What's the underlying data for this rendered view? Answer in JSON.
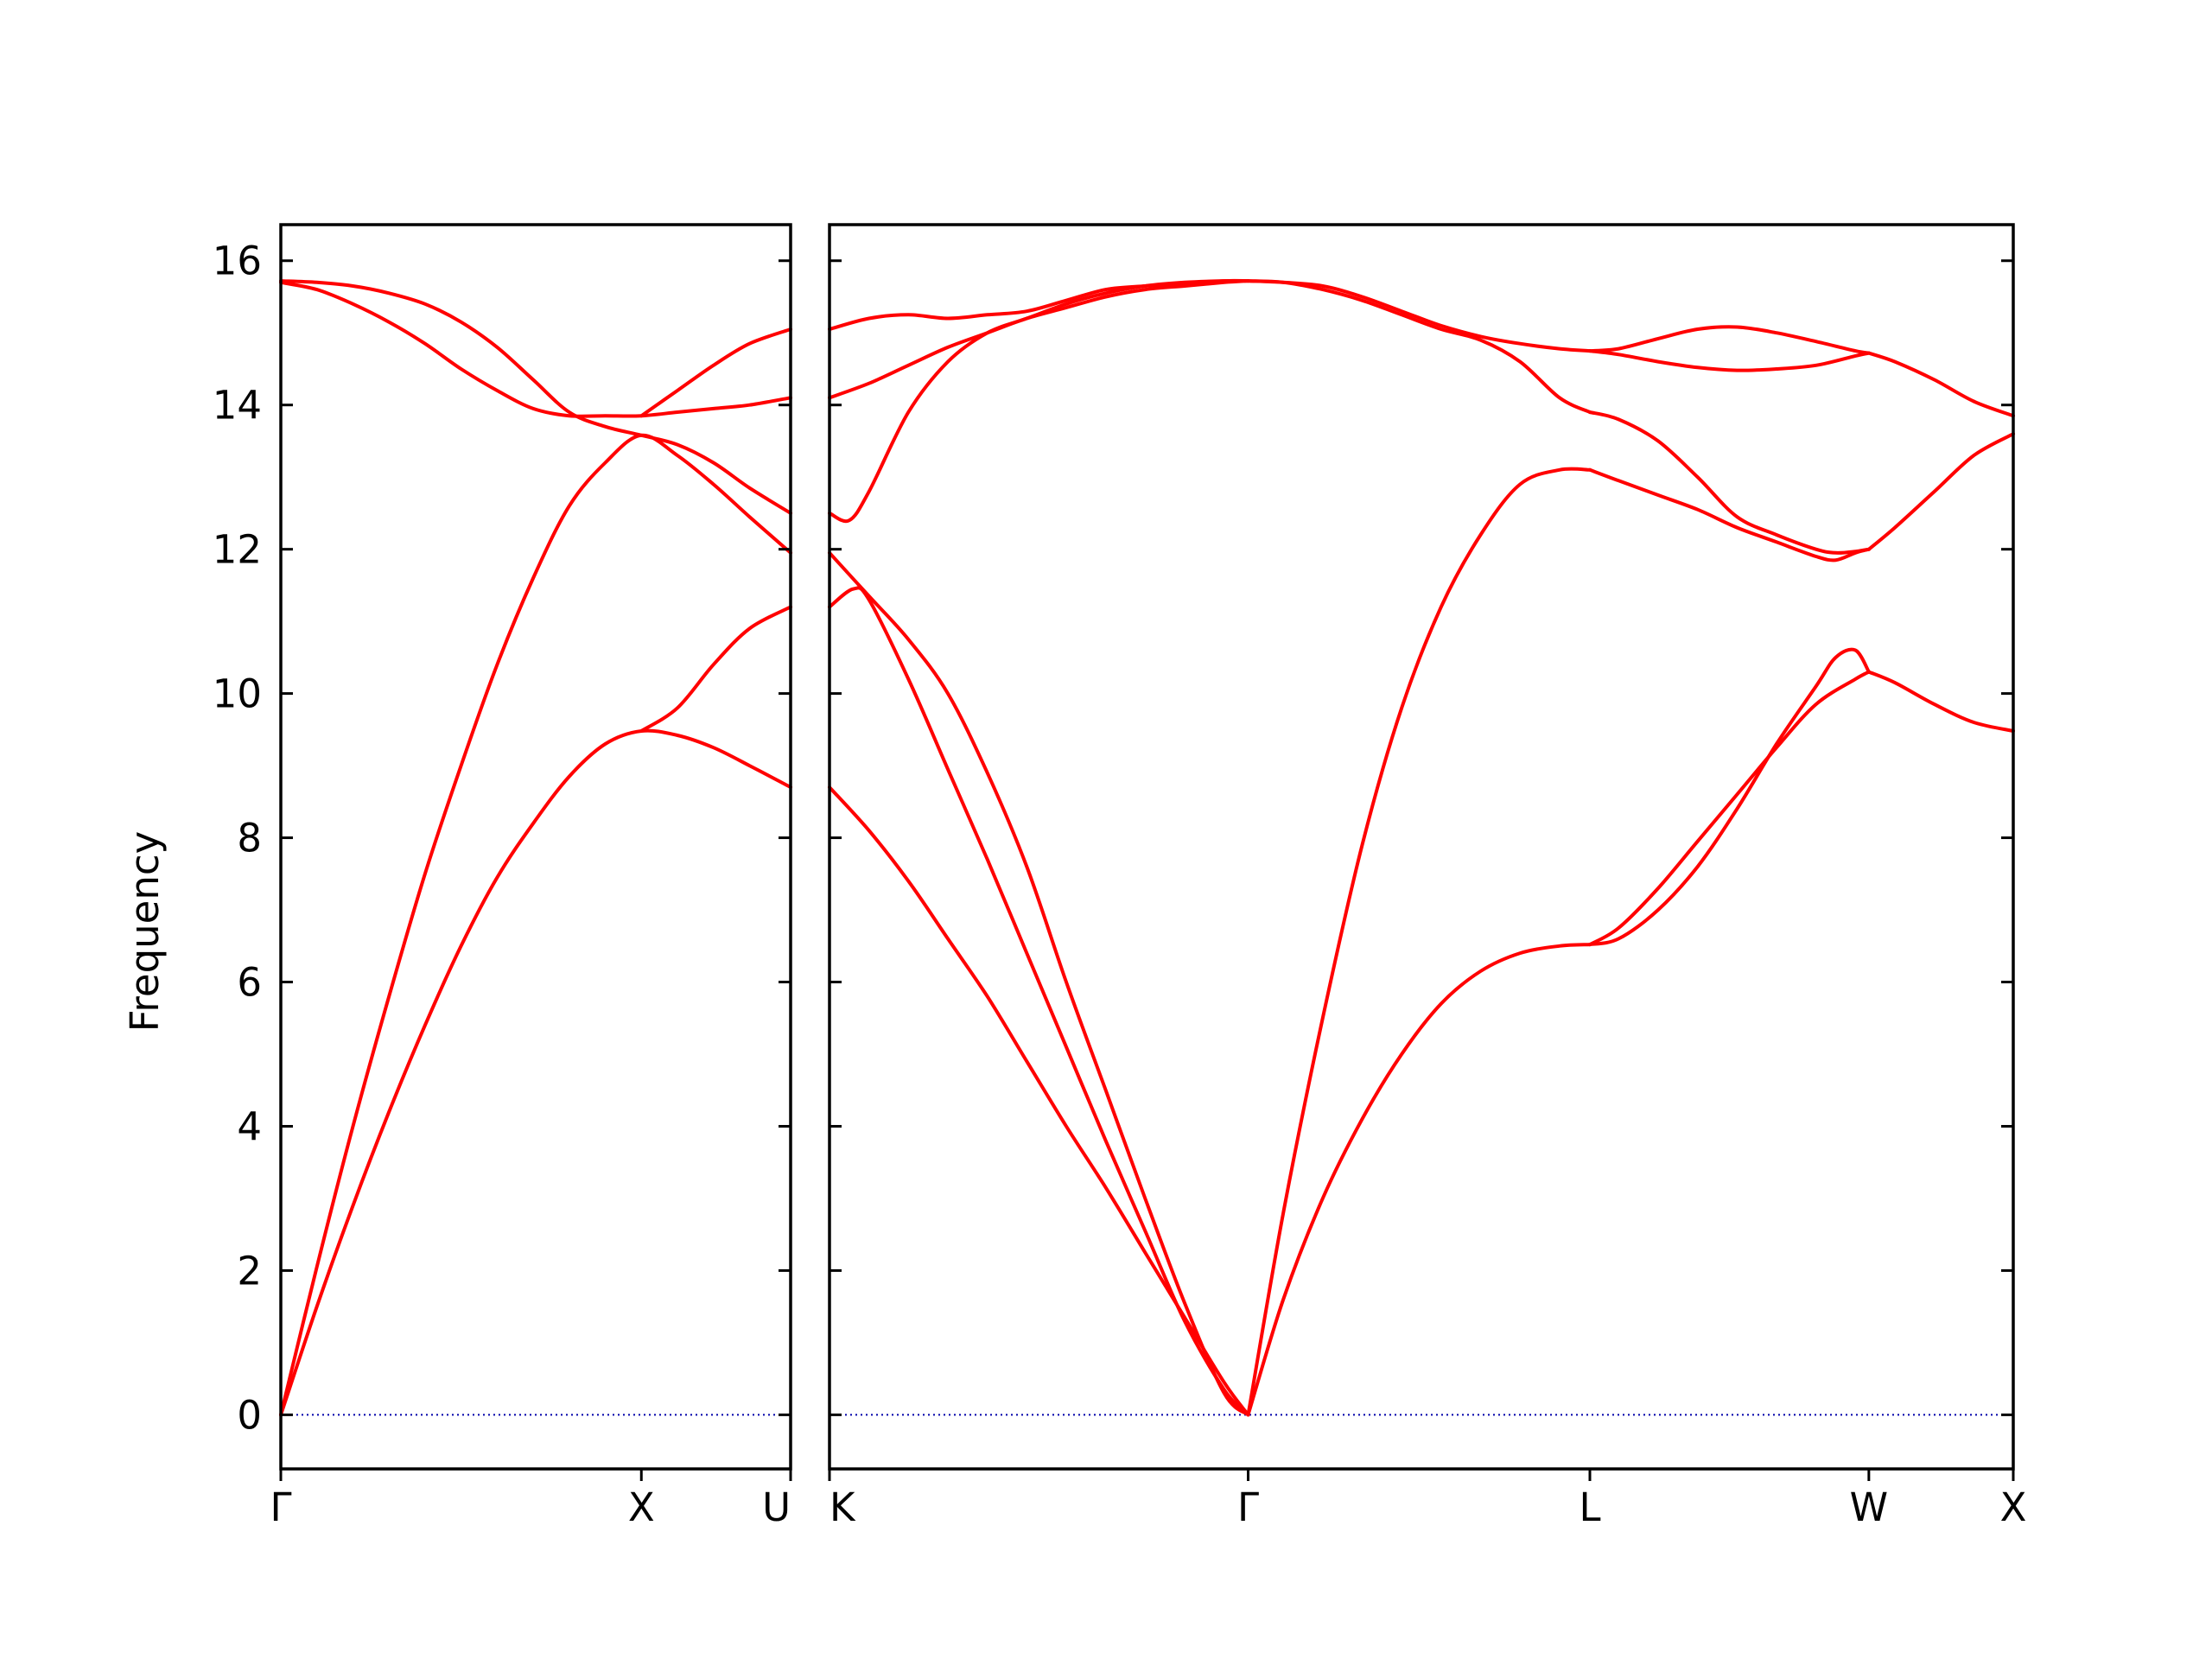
{
  "chart_data": {
    "type": "line",
    "title": "",
    "ylabel": "Frequency",
    "ylim": [
      -0.75,
      16.5
    ],
    "yticks": [
      0,
      2,
      4,
      6,
      8,
      10,
      12,
      14,
      16
    ],
    "grid": false,
    "colors": {
      "band": "#ff0000",
      "zero_line": "#0000aa"
    },
    "panels": [
      {
        "xlim": [
          0,
          1.414
        ],
        "points": [
          {
            "label": "Γ",
            "x": 0
          },
          {
            "label": "X",
            "x": 1.0
          },
          {
            "label": "U",
            "x": 1.414
          }
        ],
        "series": [
          {
            "x": [
              0,
              0.1,
              0.2,
              0.3,
              0.4,
              0.5,
              0.6,
              0.7,
              0.8,
              0.9,
              1.0,
              1.1,
              1.2,
              1.3,
              1.414
            ],
            "y": [
              0,
              1.5,
              2.9,
              4.2,
              5.4,
              6.5,
              7.45,
              8.2,
              8.85,
              9.3,
              9.48,
              9.42,
              9.25,
              9.0,
              8.7
            ]
          },
          {
            "x": [
              0,
              0.1,
              0.2,
              0.3,
              0.4,
              0.5,
              0.6,
              0.7,
              0.8,
              0.9,
              1.0,
              1.1,
              1.2,
              1.3,
              1.414
            ],
            "y": [
              0,
              2.05,
              4.0,
              5.8,
              7.5,
              9.0,
              10.4,
              11.6,
              12.6,
              13.2,
              13.58,
              13.3,
              12.9,
              12.45,
              11.95
            ]
          },
          {
            "x": [
              0,
              0.1,
              0.2,
              0.3,
              0.4,
              0.5,
              0.6,
              0.7,
              0.8,
              0.9,
              1.0,
              1.1,
              1.2,
              1.3,
              1.414
            ],
            "y": [
              15.7,
              15.6,
              15.4,
              15.15,
              14.85,
              14.5,
              14.2,
              13.95,
              13.85,
              13.85,
              13.85,
              13.9,
              13.95,
              14.0,
              14.1
            ]
          },
          {
            "x": [
              0,
              0.1,
              0.2,
              0.3,
              0.4,
              0.5,
              0.6,
              0.7,
              0.8,
              0.9,
              1.0,
              1.1,
              1.2,
              1.3,
              1.414
            ],
            "y": [
              15.72,
              15.7,
              15.65,
              15.55,
              15.4,
              15.15,
              14.8,
              14.35,
              13.9,
              13.7,
              13.58,
              13.45,
              13.2,
              12.85,
              12.5
            ]
          },
          {
            "x": [
              1.0,
              1.1,
              1.2,
              1.3,
              1.414
            ],
            "y": [
              9.48,
              9.8,
              10.4,
              10.9,
              11.2
            ]
          },
          {
            "x": [
              1.0,
              1.1,
              1.2,
              1.3,
              1.414
            ],
            "y": [
              13.85,
              14.2,
              14.55,
              14.85,
              15.05
            ]
          }
        ]
      },
      {
        "xlim": [
          0,
          3.0
        ],
        "points": [
          {
            "label": "K",
            "x": 0
          },
          {
            "label": "Γ",
            "x": 1.061
          },
          {
            "label": "L",
            "x": 1.927
          },
          {
            "label": "W",
            "x": 2.634
          },
          {
            "label": "X",
            "x": 3.0
          }
        ],
        "series": [
          {
            "x": [
              0,
              0.1,
              0.2,
              0.3,
              0.4,
              0.5,
              0.6,
              0.7,
              0.8,
              0.9,
              1.0,
              1.061
            ],
            "y": [
              8.7,
              8.1,
              7.4,
              6.6,
              5.8,
              4.9,
              4.0,
              3.15,
              2.25,
              1.35,
              0.45,
              0
            ]
          },
          {
            "x": [
              0,
              0.06,
              0.1,
              0.2,
              0.3,
              0.4,
              0.5,
              0.6,
              0.7,
              0.8,
              0.9,
              1.0,
              1.061
            ],
            "y": [
              11.2,
              11.45,
              11.3,
              10.2,
              8.95,
              7.7,
              6.4,
              5.1,
              3.8,
              2.55,
              1.3,
              0.35,
              0
            ]
          },
          {
            "x": [
              0,
              0.1,
              0.2,
              0.3,
              0.4,
              0.5,
              0.6,
              0.7,
              0.8,
              0.9,
              1.0,
              1.061
            ],
            "y": [
              11.95,
              11.35,
              10.75,
              10.0,
              8.9,
              7.6,
              6.0,
              4.5,
              3.0,
              1.55,
              0.3,
              0
            ]
          },
          {
            "x": [
              0,
              0.05,
              0.1,
              0.2,
              0.3,
              0.4,
              0.5,
              0.6,
              0.7,
              0.8,
              0.9,
              1.0,
              1.061
            ],
            "y": [
              12.5,
              12.4,
              12.8,
              13.9,
              14.6,
              15.0,
              15.2,
              15.4,
              15.55,
              15.65,
              15.7,
              15.72,
              15.72
            ]
          },
          {
            "x": [
              0,
              0.1,
              0.2,
              0.3,
              0.4,
              0.5,
              0.6,
              0.7,
              0.8,
              0.9,
              1.0,
              1.061
            ],
            "y": [
              15.05,
              15.2,
              15.25,
              15.2,
              15.25,
              15.3,
              15.45,
              15.6,
              15.65,
              15.68,
              15.72,
              15.72
            ]
          },
          {
            "x": [
              0,
              0.1,
              0.2,
              0.3,
              0.4,
              0.5,
              0.6,
              0.7,
              0.8,
              0.9,
              1.0,
              1.061
            ],
            "y": [
              14.1,
              14.3,
              14.55,
              14.8,
              15.0,
              15.2,
              15.35,
              15.5,
              15.6,
              15.65,
              15.7,
              15.72
            ]
          },
          {
            "x": [
              1.061,
              1.15,
              1.25,
              1.35,
              1.45,
              1.55,
              1.65,
              1.75,
              1.85,
              1.927
            ],
            "y": [
              0,
              1.6,
              3.0,
              4.1,
              5.0,
              5.7,
              6.15,
              6.4,
              6.5,
              6.52
            ]
          },
          {
            "x": [
              1.061,
              1.15,
              1.25,
              1.35,
              1.45,
              1.55,
              1.65,
              1.75,
              1.85,
              1.927
            ],
            "y": [
              0,
              2.8,
              5.5,
              7.9,
              9.8,
              11.2,
              12.2,
              12.9,
              13.1,
              13.1
            ]
          },
          {
            "x": [
              1.061,
              1.15,
              1.25,
              1.35,
              1.45,
              1.55,
              1.65,
              1.75,
              1.85,
              1.927
            ],
            "y": [
              15.72,
              15.7,
              15.6,
              15.45,
              15.25,
              15.05,
              14.9,
              14.6,
              14.1,
              13.9
            ]
          },
          {
            "x": [
              1.061,
              1.15,
              1.25,
              1.35,
              1.45,
              1.55,
              1.65,
              1.75,
              1.85,
              1.927
            ],
            "y": [
              15.72,
              15.7,
              15.65,
              15.5,
              15.3,
              15.1,
              14.95,
              14.85,
              14.78,
              14.75
            ]
          },
          {
            "x": [
              1.927,
              2.0,
              2.1,
              2.2,
              2.3,
              2.4,
              2.5,
              2.55,
              2.6,
              2.634
            ],
            "y": [
              6.52,
              6.6,
              7.0,
              7.6,
              8.4,
              9.3,
              10.1,
              10.5,
              10.6,
              10.3
            ]
          },
          {
            "x": [
              1.927,
              2.0,
              2.1,
              2.2,
              2.3,
              2.4,
              2.5,
              2.6,
              2.634
            ],
            "y": [
              6.52,
              6.75,
              7.3,
              7.95,
              8.6,
              9.25,
              9.85,
              10.2,
              10.3
            ]
          },
          {
            "x": [
              1.927,
              2.0,
              2.1,
              2.2,
              2.3,
              2.4,
              2.5,
              2.55,
              2.6,
              2.634
            ],
            "y": [
              13.1,
              12.95,
              12.75,
              12.55,
              12.3,
              12.1,
              11.9,
              11.85,
              11.95,
              12.0
            ]
          },
          {
            "x": [
              1.927,
              2.0,
              2.1,
              2.2,
              2.3,
              2.4,
              2.5,
              2.55,
              2.6,
              2.634
            ],
            "y": [
              13.9,
              13.8,
              13.5,
              13.0,
              12.45,
              12.2,
              12.0,
              11.95,
              11.97,
              12.0
            ]
          },
          {
            "x": [
              1.927,
              2.0,
              2.1,
              2.2,
              2.3,
              2.4,
              2.5,
              2.6,
              2.634
            ],
            "y": [
              14.75,
              14.7,
              14.6,
              14.52,
              14.48,
              14.5,
              14.55,
              14.68,
              14.72
            ]
          },
          {
            "x": [
              1.927,
              2.0,
              2.1,
              2.2,
              2.3,
              2.4,
              2.5,
              2.6,
              2.634
            ],
            "y": [
              14.75,
              14.78,
              14.92,
              15.05,
              15.08,
              15.0,
              14.88,
              14.75,
              14.72
            ]
          },
          {
            "x": [
              2.634,
              2.7,
              2.8,
              2.9,
              3.0
            ],
            "y": [
              10.3,
              10.15,
              9.85,
              9.6,
              9.48
            ]
          },
          {
            "x": [
              2.634,
              2.7,
              2.8,
              2.9,
              3.0
            ],
            "y": [
              12.0,
              12.3,
              12.8,
              13.3,
              13.6
            ]
          },
          {
            "x": [
              2.634,
              2.7,
              2.8,
              2.9,
              3.0
            ],
            "y": [
              14.72,
              14.6,
              14.35,
              14.05,
              13.85
            ]
          }
        ]
      }
    ]
  }
}
